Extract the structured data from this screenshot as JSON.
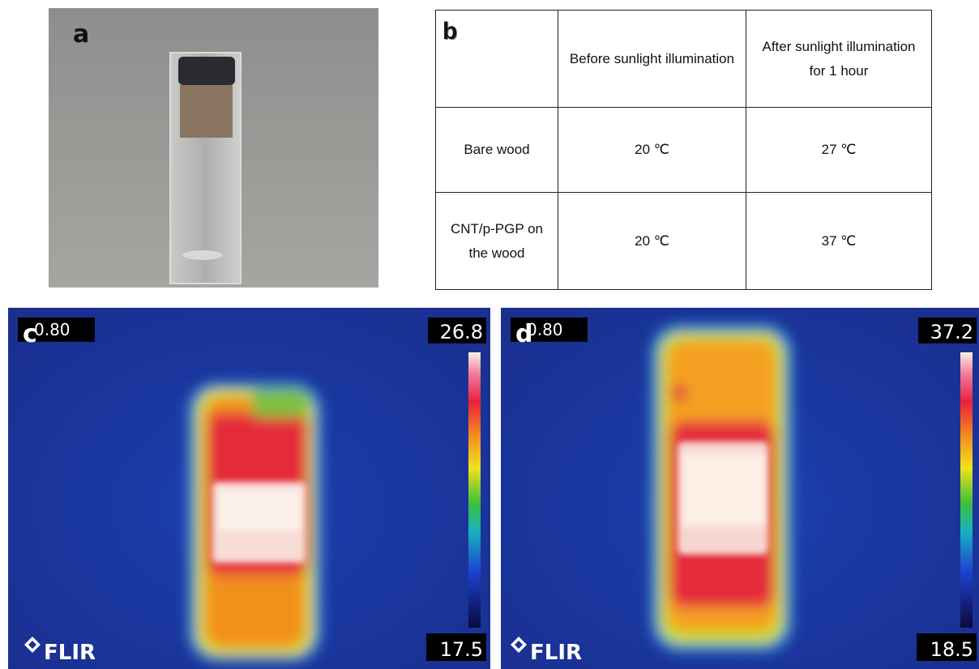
{
  "panels": {
    "a": {
      "label": "a"
    },
    "b": {
      "label": "b",
      "table": {
        "header": [
          "Before sunlight illumination",
          "After sunlight illumination for 1 hour"
        ],
        "rows": [
          [
            "Bare wood",
            "20 ℃",
            "27 ℃"
          ],
          [
            "CNT/p-PGP on the wood",
            "20 ℃",
            "37 ℃"
          ]
        ]
      }
    },
    "c": {
      "label": "c",
      "emissivity": "0.80",
      "max": 26.8,
      "min": 17.5,
      "brand": "FLIR"
    },
    "d": {
      "label": "d",
      "emissivity": "0.80",
      "max": 37.2,
      "min": 18.5,
      "brand": "FLIR"
    }
  }
}
